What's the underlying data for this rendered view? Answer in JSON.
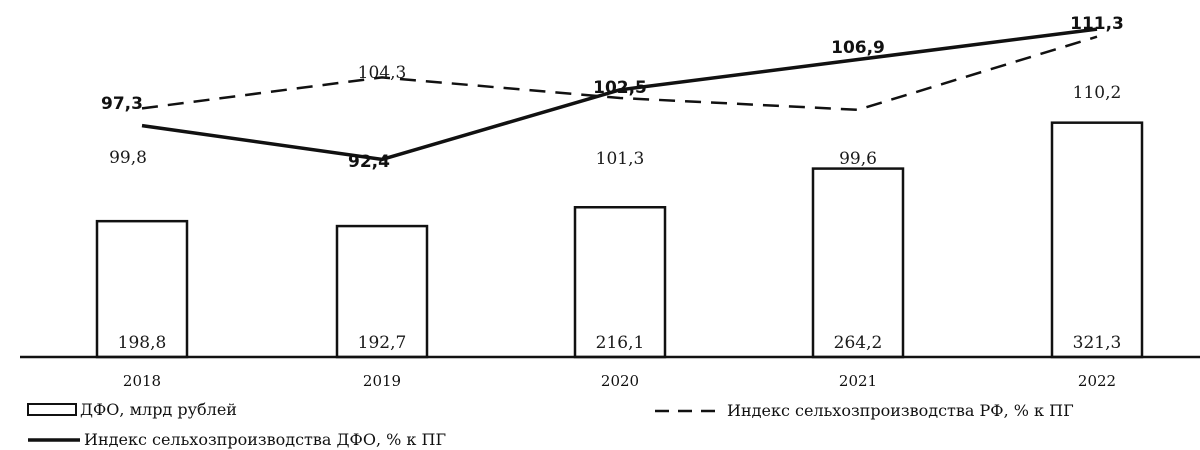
{
  "chart_data": {
    "type": "bar",
    "categories": [
      "2018",
      "2019",
      "2020",
      "2021",
      "2022"
    ],
    "bars": {
      "name": "ДФО, млрд рублей",
      "values": [
        198.8,
        192.7,
        216.1,
        264.2,
        321.3
      ],
      "labels": [
        "198,8",
        "192,7",
        "216,1",
        "264,2",
        "321,3"
      ]
    },
    "series": [
      {
        "name": "Индекс сельхозпроизводства РФ, % к ПГ",
        "style": "dashed",
        "values": [
          99.8,
          104.3,
          101.3,
          99.6,
          110.2
        ],
        "labels": [
          "99,8",
          "104,3",
          "101,3",
          "99,6",
          "110,2"
        ]
      },
      {
        "name": "Индекс сельхозпроизводства ДФО, % к ПГ",
        "style": "solid",
        "values": [
          97.3,
          92.4,
          102.5,
          106.9,
          111.3
        ],
        "labels": [
          "97,3",
          "92,4",
          "102,5",
          "106,9",
          "111,3"
        ]
      }
    ],
    "bar_ylim": [
      0,
      350
    ],
    "index_ylim": [
      80,
      115
    ],
    "grid": false,
    "legend_position": "bottom",
    "colors": {
      "line": "#111111",
      "bar_fill": "#ffffff",
      "bar_stroke": "#111111"
    }
  }
}
